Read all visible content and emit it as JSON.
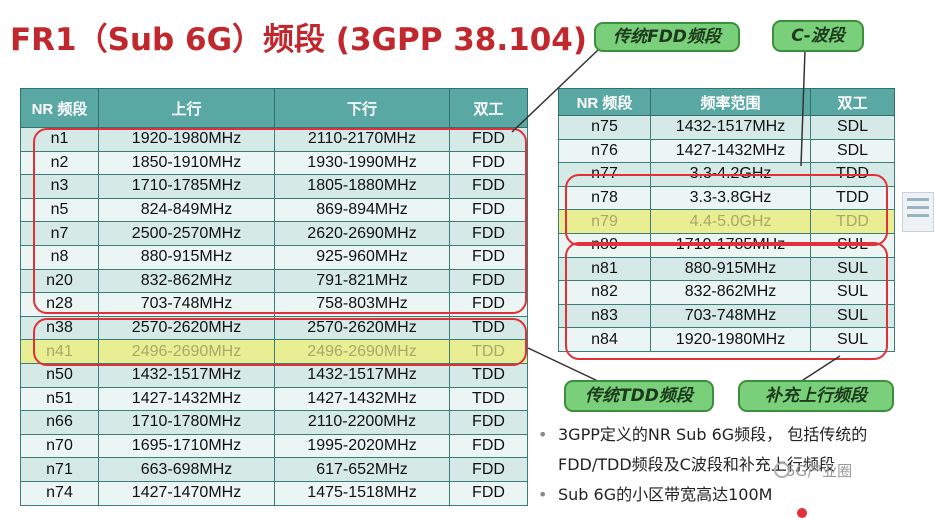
{
  "title": "FR1（Sub 6G）频段 (3GPP 38.104)",
  "left_table": {
    "headers": [
      "NR 频段",
      "上行",
      "下行",
      "双工"
    ],
    "rows": [
      [
        "n1",
        "1920-1980MHz",
        "2110-2170MHz",
        "FDD"
      ],
      [
        "n2",
        "1850-1910MHz",
        "1930-1990MHz",
        "FDD"
      ],
      [
        "n3",
        "1710-1785MHz",
        "1805-1880MHz",
        "FDD"
      ],
      [
        "n5",
        "824-849MHz",
        "869-894MHz",
        "FDD"
      ],
      [
        "n7",
        "2500-2570MHz",
        "2620-2690MHz",
        "FDD"
      ],
      [
        "n8",
        "880-915MHz",
        "925-960MHz",
        "FDD"
      ],
      [
        "n20",
        "832-862MHz",
        "791-821MHz",
        "FDD"
      ],
      [
        "n28",
        "703-748MHz",
        "758-803MHz",
        "FDD"
      ],
      [
        "n38",
        "2570-2620MHz",
        "2570-2620MHz",
        "TDD"
      ],
      [
        "n41",
        "2496-2690MHz",
        "2496-2690MHz",
        "TDD"
      ],
      [
        "n50",
        "1432-1517MHz",
        "1432-1517MHz",
        "TDD"
      ],
      [
        "n51",
        "1427-1432MHz",
        "1427-1432MHz",
        "TDD"
      ],
      [
        "n66",
        "1710-1780MHz",
        "2110-2200MHz",
        "FDD"
      ],
      [
        "n70",
        "1695-1710MHz",
        "1995-2020MHz",
        "FDD"
      ],
      [
        "n71",
        "663-698MHz",
        "617-652MHz",
        "FDD"
      ],
      [
        "n74",
        "1427-1470MHz",
        "1475-1518MHz",
        "FDD"
      ]
    ],
    "highlight_row": 9
  },
  "right_table": {
    "headers": [
      "NR 频段",
      "频率范围",
      "双工"
    ],
    "rows": [
      [
        "n75",
        "1432-1517MHz",
        "SDL"
      ],
      [
        "n76",
        "1427-1432MHz",
        "SDL"
      ],
      [
        "n77",
        "3.3-4.2GHz",
        "TDD"
      ],
      [
        "n78",
        "3.3-3.8GHz",
        "TDD"
      ],
      [
        "n79",
        "4.4-5.0GHz",
        "TDD"
      ],
      [
        "n80",
        "1710-1785MHz",
        "SUL"
      ],
      [
        "n81",
        "880-915MHz",
        "SUL"
      ],
      [
        "n82",
        "832-862MHz",
        "SUL"
      ],
      [
        "n83",
        "703-748MHz",
        "SUL"
      ],
      [
        "n84",
        "1920-1980MHz",
        "SUL"
      ]
    ],
    "highlight_row": 4
  },
  "callouts": {
    "fdd": "传统FDD频段",
    "cband": "C-波段",
    "tdd": "传统TDD频段",
    "sul": "补充上行频段"
  },
  "bullets": [
    "3GPP定义的NR Sub 6G频段， 包括传统的FDD/TDD频段及C波段和补充上行频段",
    "Sub 6G的小区带宽高达100M"
  ],
  "watermark": "5G产业圈",
  "colors": {
    "title": "#c0282e",
    "header_bg": "#5aa8a4",
    "row_odd": "#d5e9e7",
    "row_even": "#ebf5f4",
    "highlight": "#e9ee92",
    "ring": "#e0313a",
    "callout_bg": "#7ad07a"
  }
}
